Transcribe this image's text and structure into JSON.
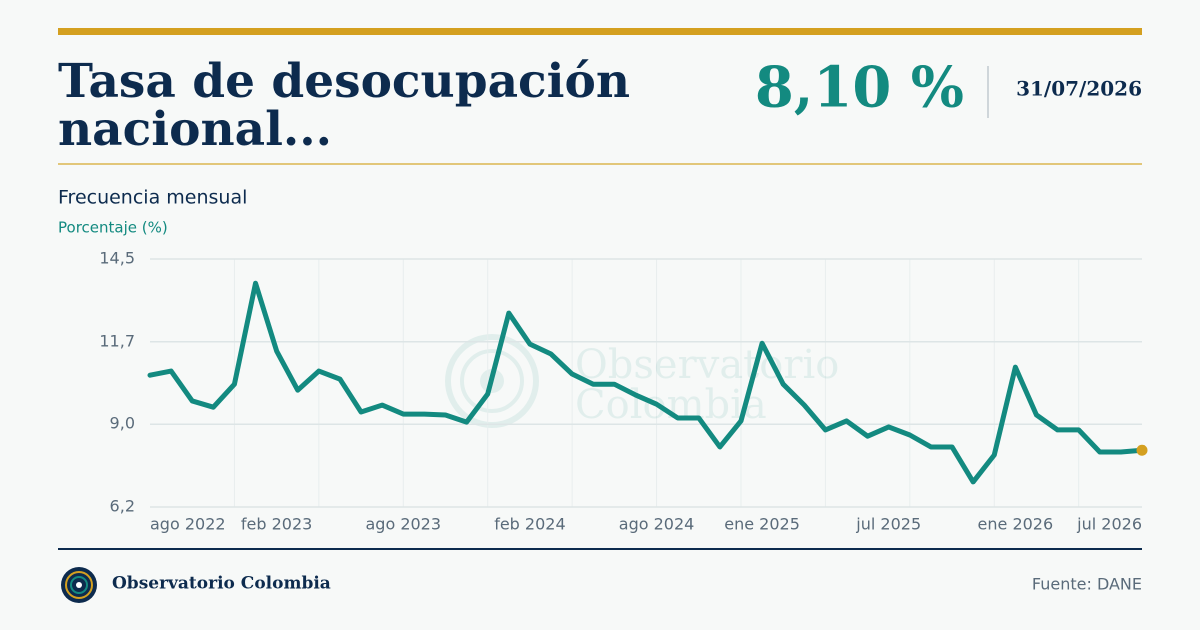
{
  "header": {
    "title": "Tasa de desocupación nacional...",
    "headline_value": "8,10 %",
    "date": "31/07/2026"
  },
  "chart_data": {
    "type": "line",
    "subtitle": "Frecuencia mensual",
    "y_label": "Porcentaje (%)",
    "watermark": "Observatorio Colombia",
    "categories": [
      "ago 2022",
      null,
      null,
      null,
      null,
      null,
      "feb 2023",
      null,
      null,
      null,
      null,
      null,
      "ago 2023",
      null,
      null,
      null,
      null,
      null,
      "feb 2024",
      null,
      null,
      null,
      null,
      null,
      "ago 2024",
      null,
      null,
      null,
      null,
      "ene 2025",
      null,
      null,
      null,
      null,
      null,
      "jul 2025",
      null,
      null,
      null,
      null,
      null,
      "ene 2026",
      null,
      null,
      null,
      null,
      null,
      "jul 2026"
    ],
    "values": [
      10.61,
      10.75,
      9.75,
      9.54,
      10.31,
      13.69,
      11.42,
      10.11,
      10.75,
      10.48,
      9.38,
      9.61,
      9.31,
      9.31,
      9.28,
      9.04,
      9.98,
      12.69,
      11.65,
      11.32,
      10.65,
      10.31,
      10.31,
      9.95,
      9.64,
      9.18,
      9.18,
      8.21,
      9.08,
      11.68,
      10.31,
      9.61,
      8.78,
      9.08,
      8.57,
      8.88,
      8.61,
      8.21,
      8.21,
      7.04,
      7.94,
      10.88,
      9.28,
      8.78,
      8.78,
      8.04,
      8.04,
      8.1
    ],
    "color": "#138a80",
    "last_point_color": "#d4a020",
    "ylim": [
      6.2,
      14.5
    ],
    "yticks": [
      {
        "value": 6.2,
        "label": "6,2"
      },
      {
        "value": 8.97,
        "label": "9,0"
      },
      {
        "value": 11.73,
        "label": "11,7"
      },
      {
        "value": 14.5,
        "label": "14,5"
      }
    ],
    "grid": true
  },
  "footer": {
    "brand": "Observatorio Colombia",
    "source": "Fuente: DANE"
  }
}
